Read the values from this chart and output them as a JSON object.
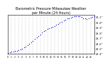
{
  "title": "Barometric Pressure Milwaukee Weather\nper Minute (24 Hours)",
  "title_fontsize": 3.5,
  "background_color": "#ffffff",
  "dot_color": "#0000cd",
  "dot_size": 0.8,
  "xlim": [
    0,
    1440
  ],
  "ylim": [
    29.4,
    30.15
  ],
  "yticks": [
    29.4,
    29.5,
    29.6,
    29.7,
    29.8,
    29.9,
    30.0,
    30.1
  ],
  "ytick_labels": [
    "29.4\"",
    "29.5\"",
    "29.6\"",
    "29.7\"",
    "29.8\"",
    "29.9\"",
    "30.0\"",
    "30.1\""
  ],
  "xtick_positions": [
    0,
    60,
    120,
    180,
    240,
    300,
    360,
    420,
    480,
    540,
    600,
    660,
    720,
    780,
    840,
    900,
    960,
    1020,
    1080,
    1140,
    1200,
    1260,
    1320,
    1380
  ],
  "xtick_labels": [
    "0",
    "1",
    "2",
    "3",
    "4",
    "5",
    "6",
    "7",
    "8",
    "9",
    "10",
    "11",
    "12",
    "13",
    "14",
    "15",
    "16",
    "17",
    "18",
    "19",
    "20",
    "21",
    "22",
    "23"
  ],
  "grid_color": "#aaaaaa",
  "grid_alpha": 0.8,
  "grid_linewidth": 0.3,
  "x_data": [
    0,
    30,
    60,
    90,
    120,
    150,
    180,
    210,
    240,
    270,
    300,
    330,
    360,
    390,
    420,
    450,
    480,
    510,
    540,
    570,
    600,
    630,
    660,
    690,
    720,
    750,
    780,
    810,
    840,
    870,
    900,
    930,
    960,
    990,
    1020,
    1050,
    1080,
    1110,
    1140,
    1170,
    1200,
    1230,
    1260,
    1290,
    1320,
    1350,
    1380,
    1410,
    1440
  ],
  "y_data": [
    29.42,
    29.43,
    29.44,
    29.44,
    29.45,
    29.46,
    29.47,
    29.48,
    29.5,
    29.52,
    29.54,
    29.56,
    29.59,
    29.62,
    29.65,
    29.68,
    29.71,
    29.74,
    29.77,
    29.8,
    29.83,
    29.85,
    29.87,
    29.89,
    29.9,
    29.91,
    29.93,
    29.95,
    29.97,
    29.99,
    30.01,
    30.03,
    30.05,
    30.07,
    30.08,
    30.09,
    30.1,
    30.11,
    30.12,
    30.12,
    30.11,
    30.1,
    30.08,
    30.07,
    30.06,
    30.07,
    30.09,
    30.1,
    30.11
  ]
}
